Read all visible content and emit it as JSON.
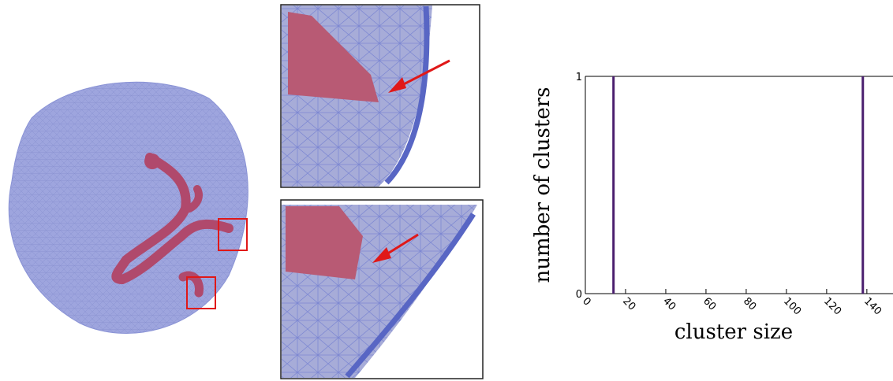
{
  "chart_data": {
    "type": "bar",
    "x": [
      14,
      138
    ],
    "values": [
      1,
      1
    ],
    "color": "#4b1f6f",
    "xlabel": "cluster size",
    "ylabel": "number of clusters",
    "xlim": [
      0,
      153
    ],
    "xticks": [
      0,
      20,
      40,
      60,
      80,
      100,
      120,
      140
    ],
    "ylim": [
      0,
      1
    ],
    "yticks": [
      0,
      1
    ]
  }
}
